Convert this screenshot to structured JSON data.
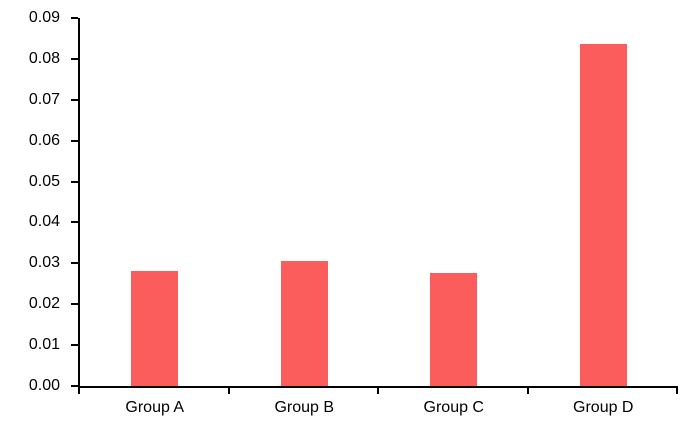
{
  "chart_data": {
    "type": "bar",
    "title": "",
    "xlabel": "",
    "ylabel": "",
    "categories": [
      "Group A",
      "Group B",
      "Group C",
      "Group D"
    ],
    "values": [
      0.0281,
      0.0306,
      0.0277,
      0.0837
    ],
    "ylim": [
      0,
      0.09
    ],
    "ytick_step": 0.01,
    "ytick_labels": [
      "0.00",
      "0.01",
      "0.02",
      "0.03",
      "0.04",
      "0.05",
      "0.06",
      "0.07",
      "0.08",
      "0.09"
    ],
    "grid": false,
    "legend": "none",
    "bar_color": "#FB5D5D",
    "axis_color": "#000000",
    "text_color": "#000000",
    "background_color": "#FFFFFF"
  }
}
